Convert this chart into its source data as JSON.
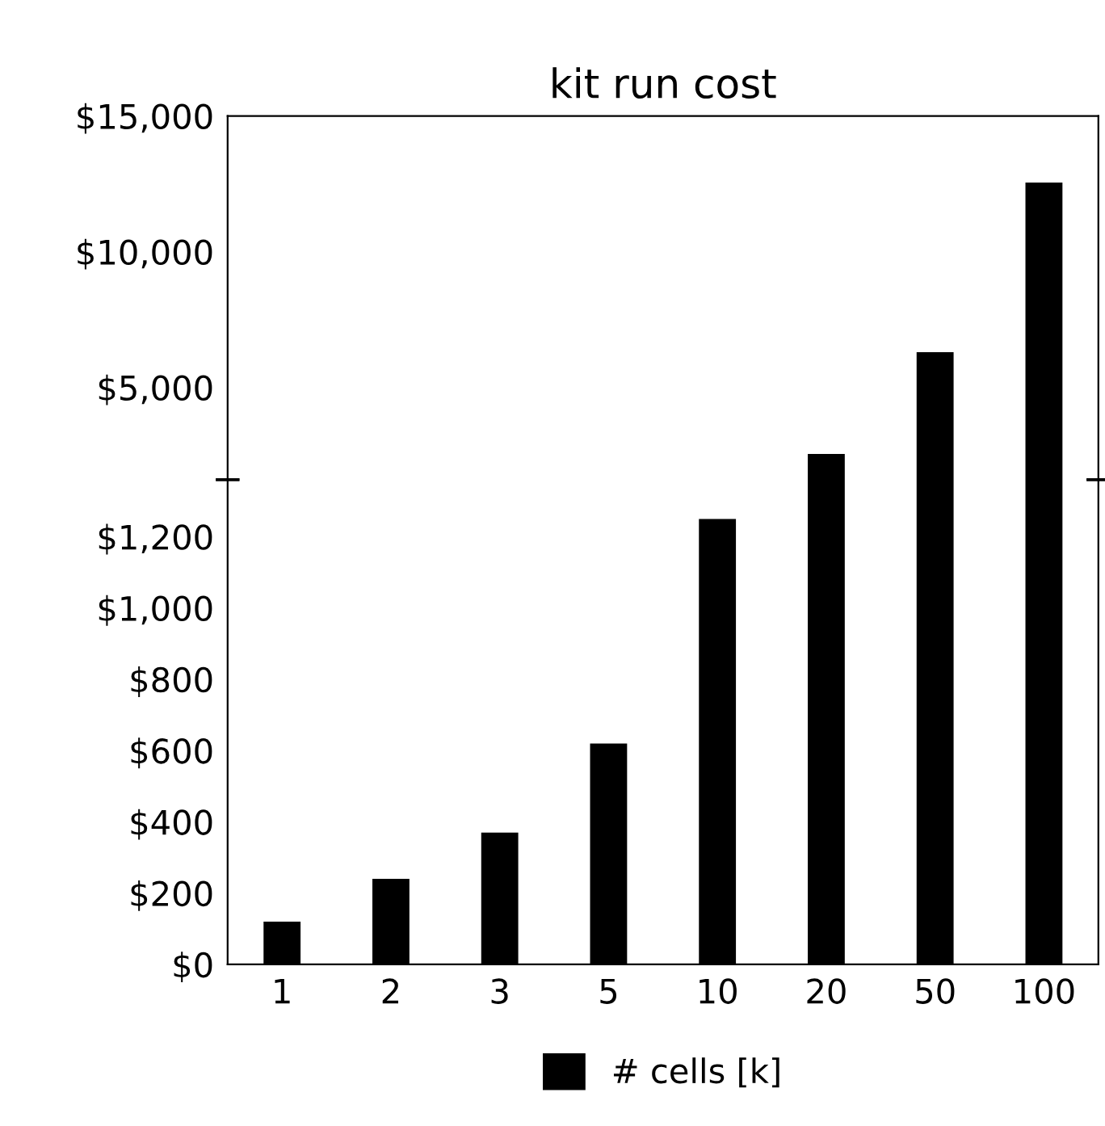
{
  "chart_data": [
    {
      "type": "bar",
      "title": "kit run cost",
      "categories": [
        "1",
        "2",
        "3",
        "5",
        "10",
        "20",
        "50",
        "100"
      ],
      "series": [
        {
          "color": "#000000",
          "values": [
            null,
            null,
            null,
            null,
            null,
            2550,
            6300,
            12550
          ]
        }
      ],
      "ylim": [
        1600,
        15000
      ],
      "yticks": [
        {
          "value": 5000,
          "label": "$5,000"
        },
        {
          "value": 10000,
          "label": "$10,000"
        },
        {
          "value": 15000,
          "label": "$15,000"
        }
      ],
      "tick_labels": "y",
      "grid": false
    },
    {
      "type": "bar",
      "categories": [
        "1",
        "2",
        "3",
        "5",
        "10",
        "20",
        "50",
        "100"
      ],
      "series": [
        {
          "name": "# cells [k]",
          "color": "#000000",
          "values": [
            120,
            240,
            370,
            620,
            1250,
            null,
            null,
            null
          ]
        }
      ],
      "ylim": [
        0,
        1360
      ],
      "yticks": [
        {
          "value": 0,
          "label": "$0"
        },
        {
          "value": 200,
          "label": "$200"
        },
        {
          "value": 400,
          "label": "$400"
        },
        {
          "value": 600,
          "label": "$600"
        },
        {
          "value": 800,
          "label": "$800"
        },
        {
          "value": 1000,
          "label": "$1,000"
        },
        {
          "value": 1200,
          "label": "$1,200"
        }
      ],
      "grid": false,
      "legend": "bottom"
    }
  ]
}
